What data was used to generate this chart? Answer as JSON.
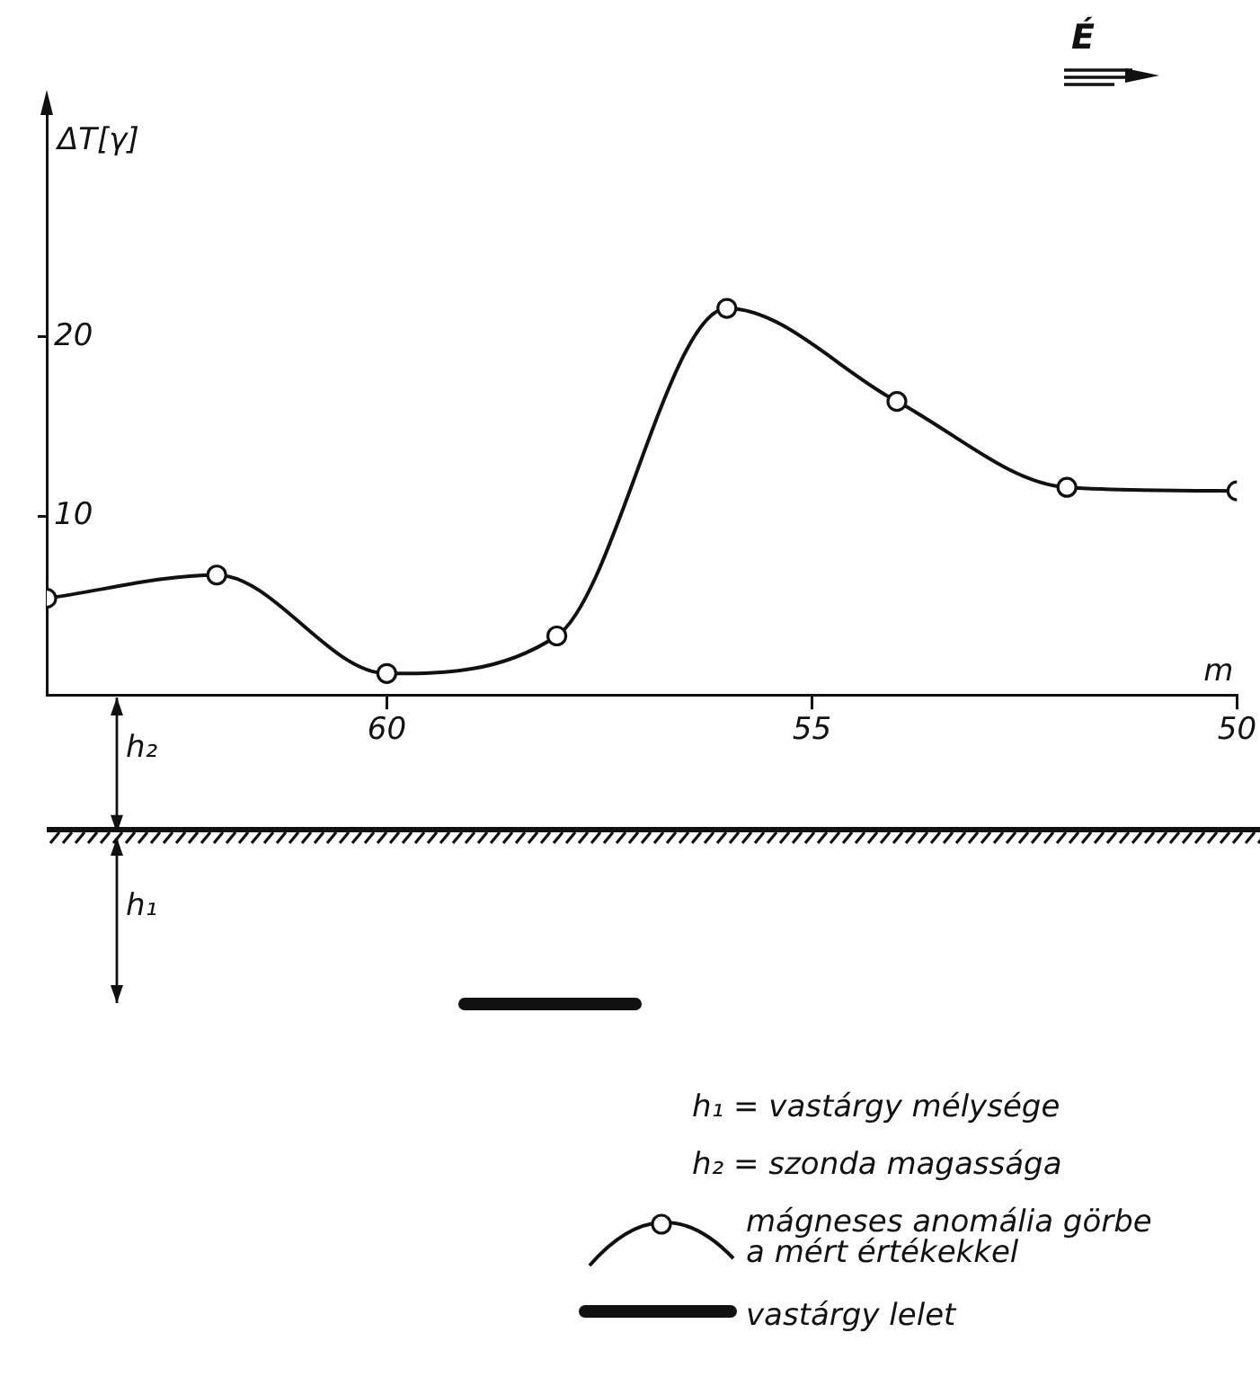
{
  "chart_data": {
    "type": "line",
    "xlabel": "m",
    "ylabel": "ΔT[γ]",
    "x": [
      64,
      62,
      60,
      58,
      56,
      54,
      52,
      50
    ],
    "series": [
      {
        "name": "mágneses anomália görbe a mért értékekkel",
        "color": "#111111",
        "values": [
          5.4,
          6.7,
          1.2,
          3.3,
          21.6,
          16.4,
          11.6,
          11.4
        ]
      }
    ],
    "xlim": [
      64,
      50
    ],
    "xticks": [
      60,
      55,
      50
    ],
    "ylim": [
      0,
      33
    ],
    "yticks": [
      10,
      20
    ],
    "marker": "circle",
    "line_style": "solid",
    "legend": "bottom right",
    "annotations": [
      "É",
      "h₂",
      "h₁",
      "h₁ = vastárgy mélysége",
      "h₂ = szonda magassága",
      "vastárgy lelet"
    ]
  }
}
